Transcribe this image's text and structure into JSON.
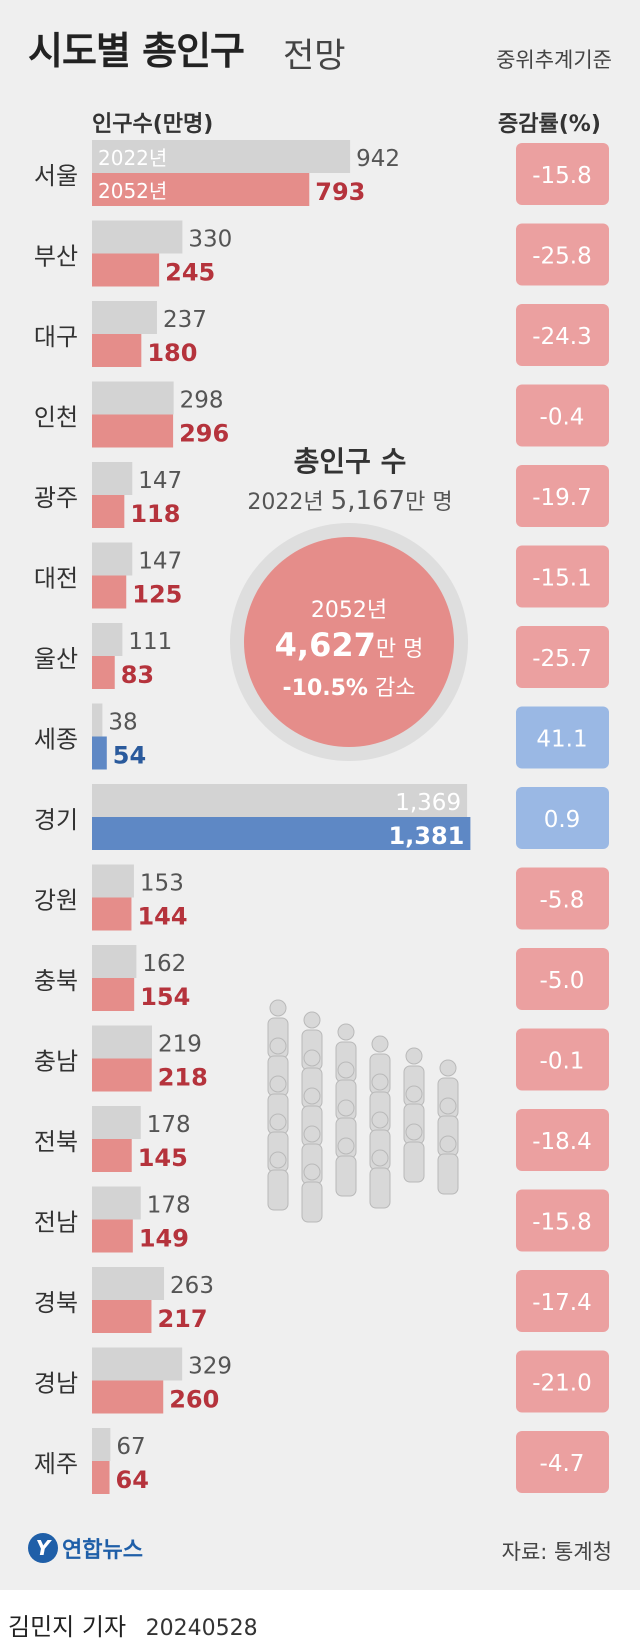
{
  "title": "시도별 총인구",
  "subtitle": "전망",
  "basis_note": "중위추계기준",
  "left_header": "인구수(만명)",
  "right_header": "증감률(%)",
  "total": {
    "title": "총인구 수",
    "year_2022_label": "2022년",
    "value_2022": "5,167",
    "unit": "만 명",
    "circle_year": "2052년",
    "circle_value": "4,627",
    "circle_unit": "만 명",
    "change_pct": "-10.5%",
    "change_label": "감소"
  },
  "logo": {
    "mark": "Y",
    "name": "연합뉴스"
  },
  "source": "자료: 통계청",
  "byline": {
    "reporter": "김민지 기자",
    "date": "20240528"
  },
  "colors": {
    "gray_bar": "#d3d3d3",
    "red_bar": "#e58d8a",
    "blue_bar": "#5e88c5",
    "red_label": "#b5333c",
    "blue_label": "#2a5a9c",
    "red_box": "#eba0a0",
    "blue_box": "#9ab8e4"
  },
  "chart_data": {
    "type": "bar",
    "title": "시도별 총인구 전망",
    "ylabel": "인구수(만명)",
    "legend": [
      "2022년",
      "2052년"
    ],
    "categories": [
      "서울",
      "부산",
      "대구",
      "인천",
      "광주",
      "대전",
      "울산",
      "세종",
      "경기",
      "강원",
      "충북",
      "충남",
      "전북",
      "전남",
      "경북",
      "경남",
      "제주"
    ],
    "series": [
      {
        "name": "2022년",
        "values": [
          942,
          330,
          237,
          298,
          147,
          147,
          111,
          38,
          1369,
          153,
          162,
          219,
          178,
          178,
          263,
          329,
          67
        ]
      },
      {
        "name": "2052년",
        "values": [
          793,
          245,
          180,
          296,
          118,
          125,
          83,
          54,
          1381,
          144,
          154,
          218,
          145,
          149,
          217,
          260,
          64
        ]
      }
    ],
    "change_label": "증감률(%)",
    "change": [
      "-15.8",
      "-25.8",
      "-24.3",
      "-0.4",
      "-19.7",
      "-15.1",
      "-25.7",
      "41.1",
      "0.9",
      "-5.8",
      "-5.0",
      "-0.1",
      "-18.4",
      "-15.8",
      "-17.4",
      "-21.0",
      "-4.7"
    ]
  }
}
